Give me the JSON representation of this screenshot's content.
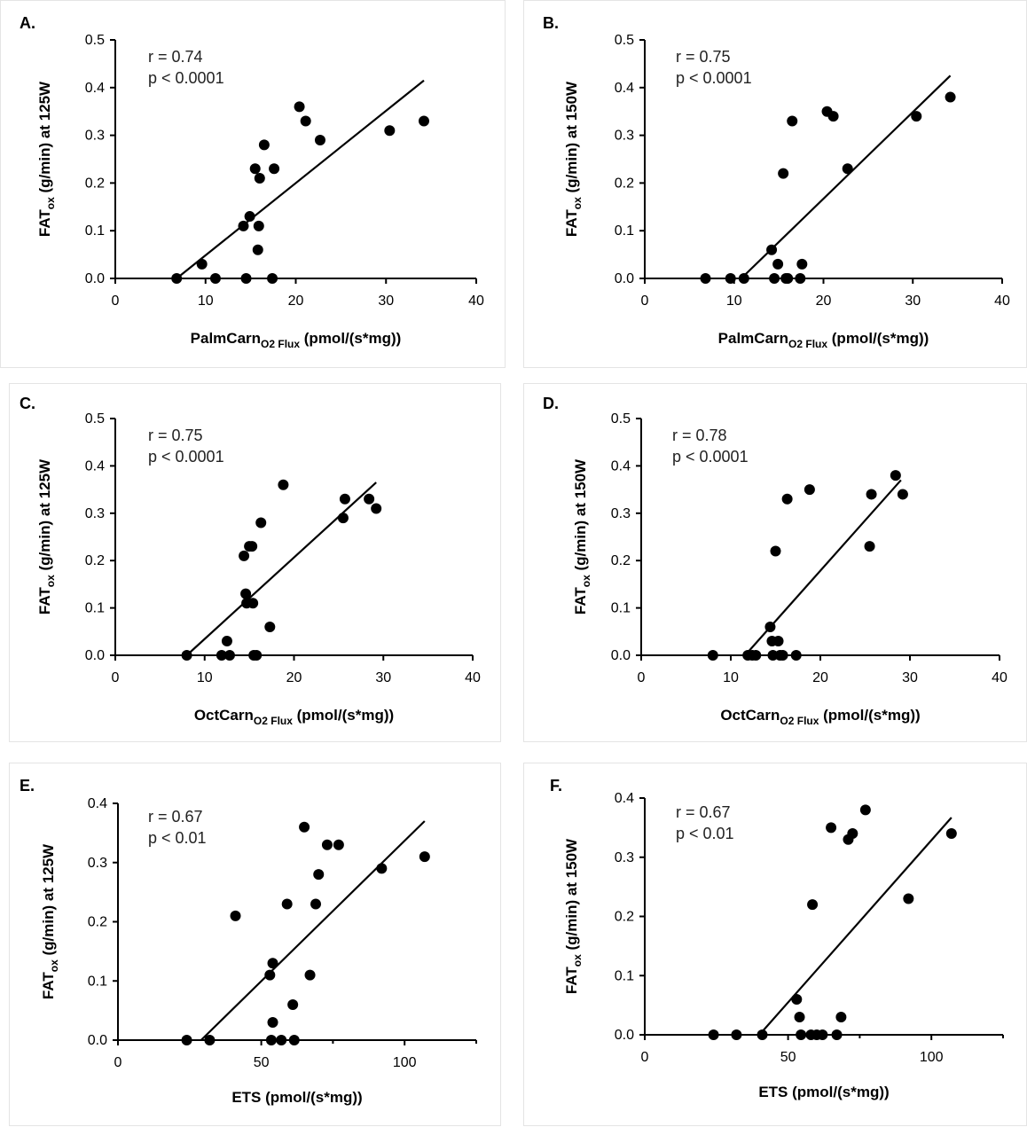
{
  "chart_data": [
    {
      "type": "scatter",
      "panel": "A.",
      "xlabel": "PalmCarn",
      "xlabel_sub": "O2 Flux",
      "xlabel_unit": "(pmol/(s*mg))",
      "ylabel": "FAT",
      "ylabel_sub": "ox",
      "ylabel_unit": "(g/min) at 125W",
      "xlim": [
        0,
        40
      ],
      "ylim": [
        0,
        0.5
      ],
      "xticks": [
        "0",
        "10",
        "20",
        "30",
        "40"
      ],
      "yticks": [
        "0.0",
        "0.1",
        "0.2",
        "0.3",
        "0.4",
        "0.5"
      ],
      "stats": {
        "r": "r = 0.74",
        "p": "p < 0.0001"
      },
      "regression": [
        [
          6.8,
          0.0
        ],
        [
          34.2,
          0.415
        ]
      ],
      "points": [
        [
          6.8,
          0
        ],
        [
          9.6,
          0.03
        ],
        [
          11.1,
          0
        ],
        [
          14.2,
          0.11
        ],
        [
          14.5,
          0
        ],
        [
          14.9,
          0.13
        ],
        [
          15.5,
          0.23
        ],
        [
          15.8,
          0.06
        ],
        [
          15.9,
          0.11
        ],
        [
          16.0,
          0.21
        ],
        [
          16.5,
          0.28
        ],
        [
          17.4,
          0
        ],
        [
          17.6,
          0.23
        ],
        [
          20.4,
          0.36
        ],
        [
          21.1,
          0.33
        ],
        [
          22.7,
          0.29
        ],
        [
          30.4,
          0.31
        ],
        [
          34.2,
          0.33
        ]
      ]
    },
    {
      "type": "scatter",
      "panel": "B.",
      "xlabel": "PalmCarn",
      "xlabel_sub": "O2 Flux",
      "xlabel_unit": "(pmol/(s*mg))",
      "ylabel": "FAT",
      "ylabel_sub": "ox",
      "ylabel_unit": "(g/min) at 150W",
      "xlim": [
        0,
        40
      ],
      "ylim": [
        0,
        0.5
      ],
      "xticks": [
        "0",
        "10",
        "20",
        "30",
        "40"
      ],
      "yticks": [
        "0.0",
        "0.1",
        "0.2",
        "0.3",
        "0.4",
        "0.5"
      ],
      "stats": {
        "r": "r = 0.75",
        "p": "p < 0.0001"
      },
      "regression": [
        [
          10.8,
          0.0
        ],
        [
          34.2,
          0.425
        ]
      ],
      "points": [
        [
          6.8,
          0
        ],
        [
          9.6,
          0
        ],
        [
          11.1,
          0
        ],
        [
          14.2,
          0.06
        ],
        [
          14.5,
          0
        ],
        [
          14.9,
          0.03
        ],
        [
          15.5,
          0.22
        ],
        [
          15.8,
          0
        ],
        [
          16.0,
          0
        ],
        [
          16.5,
          0.33
        ],
        [
          17.4,
          0
        ],
        [
          17.6,
          0.03
        ],
        [
          20.4,
          0.35
        ],
        [
          21.1,
          0.34
        ],
        [
          22.7,
          0.23
        ],
        [
          30.4,
          0.34
        ],
        [
          34.2,
          0.38
        ]
      ]
    },
    {
      "type": "scatter",
      "panel": "C.",
      "xlabel": "OctCarn",
      "xlabel_sub": "O2 Flux",
      "xlabel_unit": "(pmol/(s*mg))",
      "ylabel": "FAT",
      "ylabel_sub": "ox",
      "ylabel_unit": "(g/min) at 125W",
      "xlim": [
        0,
        40
      ],
      "ylim": [
        0,
        0.5
      ],
      "xticks": [
        "0",
        "10",
        "20",
        "30",
        "40"
      ],
      "yticks": [
        "0.0",
        "0.1",
        "0.2",
        "0.3",
        "0.4",
        "0.5"
      ],
      "stats": {
        "r": "r = 0.75",
        "p": "p < 0.0001"
      },
      "regression": [
        [
          8.0,
          0.0
        ],
        [
          29.2,
          0.365
        ]
      ],
      "points": [
        [
          8.0,
          0
        ],
        [
          11.9,
          0
        ],
        [
          12.5,
          0.03
        ],
        [
          12.8,
          0
        ],
        [
          14.4,
          0.21
        ],
        [
          14.6,
          0.13
        ],
        [
          14.7,
          0.11
        ],
        [
          15.0,
          0.23
        ],
        [
          15.3,
          0.23
        ],
        [
          15.4,
          0.11
        ],
        [
          15.5,
          0
        ],
        [
          15.8,
          0
        ],
        [
          16.3,
          0.28
        ],
        [
          17.3,
          0.06
        ],
        [
          18.8,
          0.36
        ],
        [
          25.5,
          0.29
        ],
        [
          25.7,
          0.33
        ],
        [
          28.4,
          0.33
        ],
        [
          29.2,
          0.31
        ]
      ]
    },
    {
      "type": "scatter",
      "panel": "D.",
      "xlabel": "OctCarn",
      "xlabel_sub": "O2 Flux",
      "xlabel_unit": "(pmol/(s*mg))",
      "ylabel": "FAT",
      "ylabel_sub": "ox",
      "ylabel_unit": "(g/min) at 150W",
      "xlim": [
        0,
        40
      ],
      "ylim": [
        0,
        0.5
      ],
      "xticks": [
        "0",
        "10",
        "20",
        "30",
        "40"
      ],
      "yticks": [
        "0.0",
        "0.1",
        "0.2",
        "0.3",
        "0.4",
        "0.5"
      ],
      "stats": {
        "r": "r = 0.78",
        "p": "p < 0.0001"
      },
      "regression": [
        [
          11.6,
          0.0
        ],
        [
          29.0,
          0.37
        ]
      ],
      "points": [
        [
          8.0,
          0
        ],
        [
          11.9,
          0
        ],
        [
          12.4,
          0
        ],
        [
          12.8,
          0
        ],
        [
          14.4,
          0.06
        ],
        [
          14.6,
          0.03
        ],
        [
          14.7,
          0
        ],
        [
          15.0,
          0.22
        ],
        [
          15.3,
          0.03
        ],
        [
          15.5,
          0
        ],
        [
          15.8,
          0
        ],
        [
          16.3,
          0.33
        ],
        [
          17.3,
          0
        ],
        [
          18.8,
          0.35
        ],
        [
          25.5,
          0.23
        ],
        [
          25.7,
          0.34
        ],
        [
          28.4,
          0.38
        ],
        [
          29.2,
          0.34
        ]
      ]
    },
    {
      "type": "scatter",
      "panel": "E.",
      "xlabel": "ETS",
      "xlabel_sub": "",
      "xlabel_unit": "(pmol/(s*mg))",
      "ylabel": "FAT",
      "ylabel_sub": "ox",
      "ylabel_unit": "(g/min) at 125W",
      "xlim": [
        0,
        125
      ],
      "ylim": [
        0,
        0.4
      ],
      "xticks": [
        "0",
        "50",
        "100"
      ],
      "yticks": [
        "0.0",
        "0.1",
        "0.2",
        "0.3",
        "0.4"
      ],
      "stats": {
        "r": "r = 0.67",
        "p": "p < 0.01"
      },
      "regression": [
        [
          29.0,
          0.0
        ],
        [
          107.0,
          0.37
        ]
      ],
      "points": [
        [
          24,
          0
        ],
        [
          32,
          0
        ],
        [
          41,
          0.21
        ],
        [
          53,
          0.11
        ],
        [
          53.5,
          0
        ],
        [
          54,
          0.13
        ],
        [
          54,
          0.03
        ],
        [
          57,
          0
        ],
        [
          59,
          0.23
        ],
        [
          61,
          0.06
        ],
        [
          61.5,
          0
        ],
        [
          65,
          0.36
        ],
        [
          67,
          0.11
        ],
        [
          69,
          0.23
        ],
        [
          70,
          0.28
        ],
        [
          73,
          0.33
        ],
        [
          77,
          0.33
        ],
        [
          92,
          0.29
        ],
        [
          107,
          0.31
        ]
      ]
    },
    {
      "type": "scatter",
      "panel": "F.",
      "xlabel": "ETS",
      "xlabel_sub": "",
      "xlabel_unit": "(pmol/(s*mg))",
      "ylabel": "FAT",
      "ylabel_sub": "ox",
      "ylabel_unit": "(g/min) at 150W",
      "xlim": [
        0,
        125
      ],
      "ylim": [
        0,
        0.4
      ],
      "xticks": [
        "0",
        "50",
        "100"
      ],
      "yticks": [
        "0.0",
        "0.1",
        "0.2",
        "0.3",
        "0.4"
      ],
      "stats": {
        "r": "r = 0.67",
        "p": "p < 0.01"
      },
      "regression": [
        [
          40.0,
          0.0
        ],
        [
          107.0,
          0.367
        ]
      ],
      "points": [
        [
          24,
          0
        ],
        [
          32,
          0
        ],
        [
          41,
          0
        ],
        [
          53,
          0.06
        ],
        [
          54,
          0.03
        ],
        [
          54.5,
          0
        ],
        [
          58,
          0
        ],
        [
          58.5,
          0.22
        ],
        [
          60,
          0
        ],
        [
          62,
          0
        ],
        [
          65,
          0.35
        ],
        [
          67,
          0
        ],
        [
          68.5,
          0.03
        ],
        [
          71,
          0.33
        ],
        [
          72.5,
          0.34
        ],
        [
          77,
          0.38
        ],
        [
          92,
          0.23
        ],
        [
          107,
          0.34
        ]
      ]
    }
  ]
}
